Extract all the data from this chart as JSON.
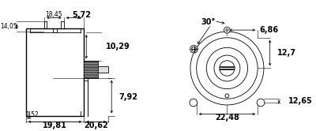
{
  "bg_color": "#ffffff",
  "line_color": "#000000",
  "dims": {
    "14_05": "14,05",
    "18_45": "18,45",
    "5_72": "5,72",
    "10_29": "10,29",
    "7_92": "7,92",
    "1_52": "1,52",
    "19_81": "19,81",
    "20_62": "20,62",
    "30deg": "30°",
    "6_86": "6,86",
    "12_7": "12,7",
    "12_65": "12,65",
    "22_48": "22,48"
  },
  "fs": 5.5,
  "fs_big": 7.0,
  "lw": 0.6,
  "lw_thick": 1.0
}
